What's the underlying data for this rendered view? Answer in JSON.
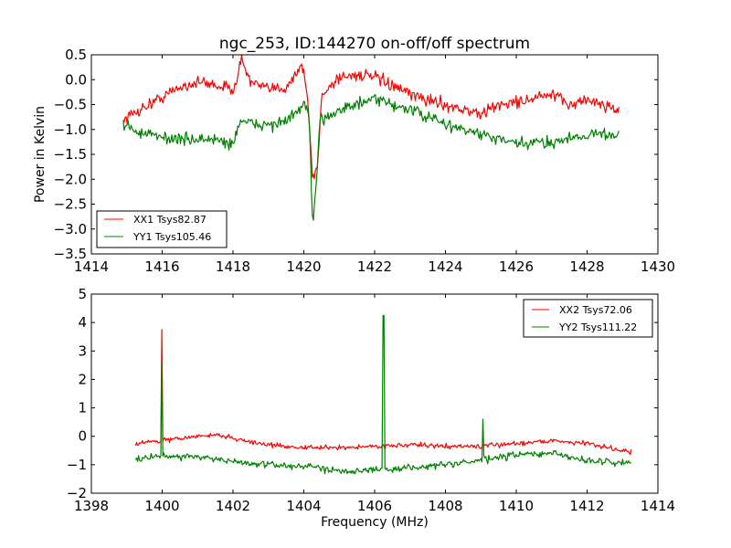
{
  "chart_data": [
    {
      "type": "line",
      "title": "ngc_253, ID:144270 on-off/off spectrum",
      "xlabel": "",
      "ylabel": "Power in Kelvin",
      "xlim": [
        1414,
        1430
      ],
      "ylim": [
        -3.5,
        0.5
      ],
      "xticks": [
        1414,
        1416,
        1418,
        1420,
        1422,
        1424,
        1426,
        1428,
        1430
      ],
      "yticks": [
        0.5,
        0.0,
        -0.5,
        -1.0,
        -1.5,
        -2.0,
        -2.5,
        -3.0,
        -3.5
      ],
      "xtick_labels": [
        "1414",
        "1416",
        "1418",
        "1420",
        "1422",
        "1424",
        "1426",
        "1428",
        "1430"
      ],
      "ytick_labels": [
        "0.5",
        "0.0",
        "−0.5",
        "−1.0",
        "−1.5",
        "−2.0",
        "−2.5",
        "−3.0",
        "−3.5"
      ],
      "grid": false,
      "legend_position": "lower-left",
      "series": [
        {
          "name": "XX1 Tsys82.87",
          "color": "#ff0000",
          "x_range": [
            1414.9,
            1428.9
          ],
          "noise": 0.12,
          "profile": [
            [
              1414.9,
              -0.8
            ],
            [
              1415.5,
              -0.55
            ],
            [
              1416.0,
              -0.35
            ],
            [
              1416.5,
              -0.15
            ],
            [
              1417.0,
              -0.05
            ],
            [
              1417.5,
              -0.1
            ],
            [
              1418.0,
              -0.2
            ],
            [
              1418.25,
              0.4
            ],
            [
              1418.5,
              -0.05
            ],
            [
              1419.0,
              -0.2
            ],
            [
              1419.5,
              -0.15
            ],
            [
              1419.95,
              0.3
            ],
            [
              1420.1,
              -0.3
            ],
            [
              1420.25,
              -2.0
            ],
            [
              1420.4,
              -1.7
            ],
            [
              1420.5,
              -0.3
            ],
            [
              1421.0,
              0.05
            ],
            [
              1421.5,
              0.1
            ],
            [
              1422.0,
              0.05
            ],
            [
              1423.0,
              -0.3
            ],
            [
              1424.0,
              -0.5
            ],
            [
              1425.0,
              -0.7
            ],
            [
              1425.5,
              -0.5
            ],
            [
              1426.0,
              -0.45
            ],
            [
              1427.0,
              -0.3
            ],
            [
              1427.5,
              -0.5
            ],
            [
              1428.0,
              -0.4
            ],
            [
              1428.9,
              -0.6
            ]
          ]
        },
        {
          "name": "YY1 Tsys105.46",
          "color": "#008000",
          "x_range": [
            1414.9,
            1428.9
          ],
          "noise": 0.12,
          "profile": [
            [
              1414.9,
              -0.9
            ],
            [
              1415.5,
              -1.1
            ],
            [
              1416.5,
              -1.2
            ],
            [
              1417.5,
              -1.2
            ],
            [
              1418.0,
              -1.3
            ],
            [
              1418.2,
              -0.8
            ],
            [
              1418.5,
              -0.9
            ],
            [
              1419.0,
              -0.9
            ],
            [
              1419.5,
              -0.85
            ],
            [
              1420.0,
              -0.5
            ],
            [
              1420.15,
              -0.7
            ],
            [
              1420.25,
              -3.0
            ],
            [
              1420.35,
              -2.2
            ],
            [
              1420.45,
              -0.8
            ],
            [
              1421.0,
              -0.6
            ],
            [
              1421.5,
              -0.5
            ],
            [
              1422.0,
              -0.4
            ],
            [
              1423.0,
              -0.6
            ],
            [
              1424.0,
              -0.9
            ],
            [
              1425.0,
              -1.1
            ],
            [
              1426.0,
              -1.3
            ],
            [
              1427.0,
              -1.25
            ],
            [
              1428.0,
              -1.1
            ],
            [
              1428.9,
              -1.1
            ]
          ]
        }
      ]
    },
    {
      "type": "line",
      "title": "",
      "xlabel": "Frequency (MHz)",
      "ylabel": "",
      "xlim": [
        1398,
        1414
      ],
      "ylim": [
        -2,
        5
      ],
      "xticks": [
        1398,
        1400,
        1402,
        1404,
        1406,
        1408,
        1410,
        1412,
        1414
      ],
      "yticks": [
        5,
        4,
        3,
        2,
        1,
        0,
        -1,
        -2
      ],
      "xtick_labels": [
        "1398",
        "1400",
        "1402",
        "1404",
        "1406",
        "1408",
        "1410",
        "1412",
        "1414"
      ],
      "ytick_labels": [
        "5",
        "4",
        "3",
        "2",
        "1",
        "0",
        "−1",
        "−2"
      ],
      "grid": false,
      "legend_position": "upper-right",
      "series": [
        {
          "name": "XX2 Tsys72.06",
          "color": "#ff0000",
          "x_range": [
            1399.25,
            1413.25
          ],
          "noise": 0.08,
          "spikes": [
            [
              1400.0,
              3.75
            ]
          ],
          "profile": [
            [
              1399.25,
              -0.25
            ],
            [
              1400.0,
              -0.15
            ],
            [
              1401.0,
              0.0
            ],
            [
              1401.6,
              0.05
            ],
            [
              1402.5,
              -0.2
            ],
            [
              1403.0,
              -0.3
            ],
            [
              1404.0,
              -0.4
            ],
            [
              1405.0,
              -0.4
            ],
            [
              1406.0,
              -0.35
            ],
            [
              1407.0,
              -0.3
            ],
            [
              1408.0,
              -0.35
            ],
            [
              1409.0,
              -0.35
            ],
            [
              1410.0,
              -0.25
            ],
            [
              1411.0,
              -0.15
            ],
            [
              1412.0,
              -0.25
            ],
            [
              1413.25,
              -0.55
            ]
          ]
        },
        {
          "name": "YY2 Tsys111.22",
          "color": "#008000",
          "x_range": [
            1399.25,
            1413.25
          ],
          "noise": 0.12,
          "spikes": [
            [
              1400.0,
              2.6
            ],
            [
              1406.25,
              4.25
            ],
            [
              1409.05,
              0.6
            ]
          ],
          "profile": [
            [
              1399.25,
              -0.8
            ],
            [
              1400.0,
              -0.7
            ],
            [
              1401.0,
              -0.7
            ],
            [
              1402.0,
              -0.9
            ],
            [
              1403.0,
              -1.0
            ],
            [
              1404.0,
              -1.05
            ],
            [
              1405.0,
              -1.2
            ],
            [
              1406.0,
              -1.2
            ],
            [
              1407.0,
              -1.1
            ],
            [
              1408.0,
              -1.0
            ],
            [
              1409.0,
              -0.85
            ],
            [
              1410.0,
              -0.65
            ],
            [
              1411.0,
              -0.6
            ],
            [
              1412.0,
              -0.85
            ],
            [
              1413.25,
              -0.95
            ]
          ]
        }
      ]
    }
  ]
}
